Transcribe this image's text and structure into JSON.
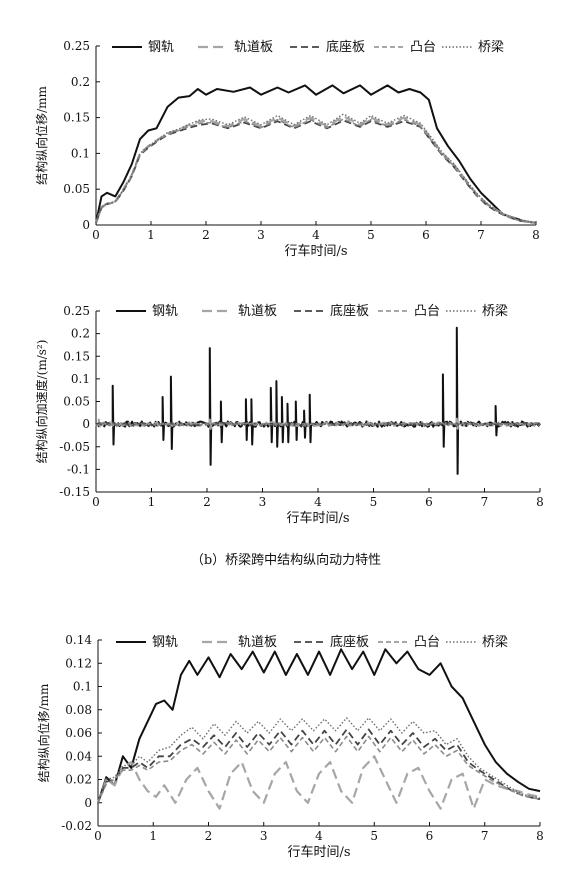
{
  "caption": "（b）桥梁跨中结构纵向动力特性",
  "legend_labels": [
    "钢轨",
    "轨道板",
    "底座板",
    "凸台",
    "桥梁"
  ],
  "colors": {
    "rail": "#111111",
    "slab": "#a6a6a6",
    "base": "#444444",
    "boss": "#8c8c8c",
    "bridge": "#6e6e6e"
  },
  "chart_data": [
    {
      "type": "line",
      "xlabel": "行车时间/s",
      "ylabel": "结构纵向位移/mm",
      "xlim": [
        0,
        8
      ],
      "ylim": [
        0,
        0.25
      ],
      "xticks": [
        "0",
        "1",
        "2",
        "3",
        "4",
        "5",
        "6",
        "7",
        "8"
      ],
      "yticks": [
        "0",
        "0.05",
        "0.1",
        "0.15",
        "0.2",
        "0.25"
      ],
      "legend": "top",
      "grid": false,
      "series": [
        {
          "name": "钢轨",
          "x": [
            0,
            0.1,
            0.2,
            0.35,
            0.5,
            0.65,
            0.8,
            0.95,
            1.1,
            1.3,
            1.5,
            1.7,
            1.85,
            2.0,
            2.2,
            2.5,
            2.8,
            3.0,
            3.3,
            3.5,
            3.8,
            4.0,
            4.3,
            4.5,
            4.8,
            5.0,
            5.3,
            5.5,
            5.7,
            5.9,
            6.05,
            6.2,
            6.4,
            6.6,
            6.8,
            7.0,
            7.2,
            7.4,
            7.6,
            7.8,
            8.0
          ],
          "y": [
            0.003,
            0.04,
            0.045,
            0.04,
            0.06,
            0.085,
            0.12,
            0.132,
            0.135,
            0.165,
            0.178,
            0.18,
            0.19,
            0.182,
            0.19,
            0.186,
            0.192,
            0.182,
            0.192,
            0.185,
            0.195,
            0.182,
            0.195,
            0.184,
            0.195,
            0.182,
            0.195,
            0.185,
            0.19,
            0.185,
            0.175,
            0.135,
            0.11,
            0.09,
            0.065,
            0.045,
            0.03,
            0.015,
            0.01,
            0.005,
            0.003
          ]
        },
        {
          "name": "轨道板",
          "x": [
            0,
            0.1,
            0.2,
            0.35,
            0.5,
            0.65,
            0.8,
            0.95,
            1.1,
            1.3,
            1.5,
            1.7,
            1.9,
            2.1,
            2.4,
            2.7,
            3.0,
            3.3,
            3.6,
            3.9,
            4.2,
            4.5,
            4.8,
            5.0,
            5.3,
            5.6,
            5.9,
            6.1,
            6.3,
            6.5,
            6.7,
            6.9,
            7.1,
            7.3,
            7.5,
            7.7,
            8.0
          ],
          "y": [
            0.003,
            0.025,
            0.03,
            0.033,
            0.05,
            0.07,
            0.1,
            0.11,
            0.118,
            0.128,
            0.133,
            0.14,
            0.145,
            0.145,
            0.138,
            0.148,
            0.138,
            0.15,
            0.138,
            0.15,
            0.138,
            0.152,
            0.14,
            0.15,
            0.14,
            0.15,
            0.14,
            0.12,
            0.1,
            0.085,
            0.065,
            0.045,
            0.03,
            0.02,
            0.012,
            0.007,
            0.003
          ]
        },
        {
          "name": "底座板",
          "x": [
            0,
            0.1,
            0.2,
            0.35,
            0.5,
            0.65,
            0.8,
            0.95,
            1.1,
            1.3,
            1.5,
            1.7,
            1.9,
            2.1,
            2.4,
            2.7,
            3.0,
            3.3,
            3.6,
            3.9,
            4.2,
            4.5,
            4.8,
            5.0,
            5.3,
            5.6,
            5.9,
            6.1,
            6.3,
            6.5,
            6.7,
            6.9,
            7.1,
            7.3,
            7.5,
            7.7,
            8.0
          ],
          "y": [
            0.003,
            0.024,
            0.029,
            0.032,
            0.048,
            0.068,
            0.098,
            0.108,
            0.116,
            0.126,
            0.131,
            0.136,
            0.14,
            0.142,
            0.135,
            0.143,
            0.135,
            0.145,
            0.135,
            0.145,
            0.135,
            0.146,
            0.137,
            0.145,
            0.137,
            0.145,
            0.137,
            0.117,
            0.097,
            0.082,
            0.062,
            0.043,
            0.028,
            0.018,
            0.011,
            0.006,
            0.003
          ]
        },
        {
          "name": "凸台",
          "x": [
            0,
            0.1,
            0.2,
            0.35,
            0.5,
            0.65,
            0.8,
            0.95,
            1.1,
            1.3,
            1.5,
            1.7,
            1.9,
            2.1,
            2.4,
            2.7,
            3.0,
            3.3,
            3.6,
            3.9,
            4.2,
            4.5,
            4.8,
            5.0,
            5.3,
            5.6,
            5.9,
            6.1,
            6.3,
            6.5,
            6.7,
            6.9,
            7.1,
            7.3,
            7.5,
            7.7,
            8.0
          ],
          "y": [
            0.003,
            0.024,
            0.029,
            0.032,
            0.049,
            0.069,
            0.099,
            0.109,
            0.117,
            0.127,
            0.132,
            0.138,
            0.142,
            0.143,
            0.136,
            0.145,
            0.136,
            0.147,
            0.136,
            0.147,
            0.136,
            0.148,
            0.138,
            0.147,
            0.138,
            0.147,
            0.138,
            0.118,
            0.098,
            0.083,
            0.063,
            0.044,
            0.029,
            0.019,
            0.011,
            0.006,
            0.003
          ]
        },
        {
          "name": "桥梁",
          "x": [
            0,
            0.1,
            0.2,
            0.35,
            0.5,
            0.65,
            0.8,
            0.95,
            1.1,
            1.3,
            1.5,
            1.7,
            1.9,
            2.1,
            2.4,
            2.7,
            3.0,
            3.3,
            3.6,
            3.9,
            4.2,
            4.5,
            4.8,
            5.0,
            5.3,
            5.6,
            5.9,
            6.1,
            6.3,
            6.5,
            6.7,
            6.9,
            7.1,
            7.3,
            7.5,
            7.7,
            8.0
          ],
          "y": [
            0.003,
            0.025,
            0.03,
            0.033,
            0.05,
            0.07,
            0.1,
            0.11,
            0.118,
            0.129,
            0.134,
            0.141,
            0.147,
            0.148,
            0.14,
            0.151,
            0.14,
            0.153,
            0.14,
            0.153,
            0.14,
            0.155,
            0.142,
            0.153,
            0.142,
            0.153,
            0.142,
            0.122,
            0.101,
            0.086,
            0.066,
            0.046,
            0.031,
            0.02,
            0.012,
            0.007,
            0.003
          ]
        }
      ]
    },
    {
      "type": "line",
      "xlabel": "行车时间/s",
      "ylabel": "结构纵向加速度/(m/s²)",
      "xlim": [
        0,
        8
      ],
      "ylim": [
        -0.15,
        0.25
      ],
      "xticks": [
        "0",
        "1",
        "2",
        "3",
        "4",
        "5",
        "6",
        "7",
        "8"
      ],
      "yticks": [
        "-0.15",
        "-0.1",
        "-0.05",
        "0",
        "0.05",
        "0.1",
        "0.15",
        "0.2",
        "0.25"
      ],
      "legend": "top",
      "grid": false,
      "series": [
        {
          "name": "钢轨",
          "spikes": [
            [
              0.3,
              0.085,
              -0.045
            ],
            [
              1.2,
              0.06,
              -0.035
            ],
            [
              1.35,
              0.105,
              -0.055
            ],
            [
              2.05,
              0.168,
              -0.09
            ],
            [
              2.25,
              0.05,
              -0.04
            ],
            [
              2.7,
              0.055,
              -0.035
            ],
            [
              2.8,
              0.055,
              -0.045
            ],
            [
              3.15,
              0.08,
              -0.04
            ],
            [
              3.25,
              0.095,
              -0.05
            ],
            [
              3.35,
              0.06,
              -0.04
            ],
            [
              3.45,
              0.045,
              -0.04
            ],
            [
              3.6,
              0.05,
              -0.035
            ],
            [
              3.75,
              0.03,
              -0.03
            ],
            [
              3.85,
              0.065,
              -0.04
            ],
            [
              6.25,
              0.11,
              -0.05
            ],
            [
              6.5,
              0.213,
              -0.11
            ],
            [
              7.2,
              0.04,
              -0.025
            ]
          ],
          "noise": 0.006
        },
        {
          "name": "轨道板",
          "spikes": [
            [
              0.05,
              0.01,
              -0.005
            ],
            [
              2.05,
              0.01,
              -0.01
            ],
            [
              6.5,
              0.012,
              -0.01
            ]
          ],
          "noise": 0.004
        },
        {
          "name": "底座板",
          "spikes": [],
          "noise": 0.003
        },
        {
          "name": "凸台",
          "spikes": [],
          "noise": 0.003
        },
        {
          "name": "桥梁",
          "spikes": [],
          "noise": 0.002
        }
      ]
    },
    {
      "type": "line",
      "xlabel": "行车时间/s",
      "ylabel": "结构纵向位移/mm",
      "xlim": [
        0,
        8
      ],
      "ylim": [
        -0.02,
        0.14
      ],
      "xticks": [
        "0",
        "1",
        "2",
        "3",
        "4",
        "5",
        "6",
        "7",
        "8"
      ],
      "yticks": [
        "-0.02",
        "0",
        "0.02",
        "0.04",
        "0.06",
        "0.08",
        "0.1",
        "0.12",
        "0.14"
      ],
      "legend": "top",
      "grid": false,
      "series": [
        {
          "name": "钢轨",
          "x": [
            0,
            0.15,
            0.3,
            0.45,
            0.6,
            0.75,
            0.9,
            1.05,
            1.2,
            1.35,
            1.5,
            1.65,
            1.8,
            2.0,
            2.2,
            2.4,
            2.6,
            2.8,
            3.0,
            3.2,
            3.4,
            3.6,
            3.8,
            4.0,
            4.2,
            4.4,
            4.6,
            4.8,
            5.0,
            5.2,
            5.4,
            5.6,
            5.8,
            6.0,
            6.2,
            6.4,
            6.6,
            6.8,
            7.0,
            7.2,
            7.4,
            7.6,
            7.8,
            8.0
          ],
          "y": [
            0.0,
            0.022,
            0.015,
            0.04,
            0.03,
            0.055,
            0.07,
            0.085,
            0.088,
            0.08,
            0.11,
            0.122,
            0.11,
            0.125,
            0.108,
            0.128,
            0.115,
            0.13,
            0.112,
            0.13,
            0.11,
            0.128,
            0.11,
            0.13,
            0.11,
            0.132,
            0.115,
            0.13,
            0.11,
            0.132,
            0.12,
            0.13,
            0.115,
            0.11,
            0.12,
            0.1,
            0.09,
            0.07,
            0.05,
            0.035,
            0.025,
            0.018,
            0.012,
            0.01
          ]
        },
        {
          "name": "轨道板",
          "x": [
            0,
            0.15,
            0.3,
            0.45,
            0.6,
            0.75,
            0.9,
            1.05,
            1.2,
            1.4,
            1.6,
            1.8,
            2.0,
            2.2,
            2.4,
            2.6,
            2.8,
            3.0,
            3.2,
            3.4,
            3.6,
            3.8,
            4.0,
            4.2,
            4.4,
            4.6,
            4.8,
            5.0,
            5.2,
            5.4,
            5.6,
            5.8,
            6.0,
            6.2,
            6.4,
            6.6,
            6.8,
            7.0,
            7.2,
            7.4,
            7.6,
            7.8,
            8.0
          ],
          "y": [
            0.0,
            0.02,
            0.015,
            0.03,
            0.035,
            0.02,
            0.01,
            0.005,
            0.015,
            0.0,
            0.02,
            0.03,
            0.01,
            -0.005,
            0.025,
            0.035,
            0.01,
            0.0,
            0.025,
            0.035,
            0.01,
            0.0,
            0.025,
            0.035,
            0.01,
            0.0,
            0.03,
            0.04,
            0.02,
            0.0,
            0.025,
            0.03,
            0.01,
            -0.005,
            0.02,
            0.025,
            -0.005,
            0.02,
            0.015,
            0.012,
            0.01,
            0.007,
            0.005
          ]
        },
        {
          "name": "底座板",
          "x": [
            0,
            0.15,
            0.3,
            0.45,
            0.6,
            0.75,
            0.9,
            1.1,
            1.3,
            1.5,
            1.7,
            1.9,
            2.1,
            2.3,
            2.5,
            2.7,
            2.9,
            3.1,
            3.3,
            3.5,
            3.7,
            3.9,
            4.1,
            4.3,
            4.5,
            4.7,
            4.9,
            5.1,
            5.3,
            5.5,
            5.7,
            5.9,
            6.1,
            6.3,
            6.5,
            6.7,
            6.9,
            7.1,
            7.3,
            7.5,
            7.7,
            8.0
          ],
          "y": [
            0.0,
            0.018,
            0.02,
            0.03,
            0.03,
            0.035,
            0.03,
            0.04,
            0.04,
            0.05,
            0.055,
            0.048,
            0.058,
            0.048,
            0.06,
            0.048,
            0.06,
            0.05,
            0.062,
            0.05,
            0.062,
            0.05,
            0.062,
            0.05,
            0.063,
            0.05,
            0.063,
            0.05,
            0.062,
            0.05,
            0.06,
            0.048,
            0.055,
            0.045,
            0.05,
            0.035,
            0.028,
            0.022,
            0.016,
            0.01,
            0.006,
            0.003
          ]
        },
        {
          "name": "凸台",
          "x": [
            0,
            0.15,
            0.3,
            0.45,
            0.6,
            0.75,
            0.9,
            1.1,
            1.3,
            1.5,
            1.7,
            1.9,
            2.1,
            2.3,
            2.5,
            2.7,
            2.9,
            3.1,
            3.3,
            3.5,
            3.7,
            3.9,
            4.1,
            4.3,
            4.5,
            4.7,
            4.9,
            5.1,
            5.3,
            5.5,
            5.7,
            5.9,
            6.1,
            6.3,
            6.5,
            6.7,
            6.9,
            7.1,
            7.3,
            7.5,
            7.7,
            8.0
          ],
          "y": [
            0.0,
            0.016,
            0.02,
            0.028,
            0.028,
            0.032,
            0.028,
            0.035,
            0.036,
            0.045,
            0.05,
            0.042,
            0.052,
            0.042,
            0.054,
            0.042,
            0.054,
            0.044,
            0.056,
            0.044,
            0.056,
            0.044,
            0.056,
            0.044,
            0.057,
            0.044,
            0.057,
            0.044,
            0.056,
            0.044,
            0.054,
            0.042,
            0.05,
            0.04,
            0.045,
            0.032,
            0.026,
            0.02,
            0.015,
            0.01,
            0.006,
            0.003
          ]
        },
        {
          "name": "桥梁",
          "x": [
            0,
            0.15,
            0.3,
            0.45,
            0.6,
            0.75,
            0.9,
            1.1,
            1.3,
            1.5,
            1.7,
            1.9,
            2.1,
            2.3,
            2.5,
            2.7,
            2.9,
            3.1,
            3.3,
            3.5,
            3.7,
            3.9,
            4.1,
            4.3,
            4.5,
            4.7,
            4.9,
            5.1,
            5.3,
            5.5,
            5.7,
            5.9,
            6.1,
            6.3,
            6.5,
            6.7,
            6.9,
            7.1,
            7.3,
            7.5,
            7.7,
            8.0
          ],
          "y": [
            0.0,
            0.02,
            0.022,
            0.032,
            0.032,
            0.04,
            0.035,
            0.045,
            0.048,
            0.058,
            0.065,
            0.055,
            0.068,
            0.058,
            0.07,
            0.06,
            0.07,
            0.06,
            0.072,
            0.062,
            0.072,
            0.062,
            0.072,
            0.062,
            0.073,
            0.062,
            0.073,
            0.062,
            0.072,
            0.06,
            0.07,
            0.06,
            0.062,
            0.05,
            0.055,
            0.04,
            0.03,
            0.024,
            0.018,
            0.012,
            0.007,
            0.004
          ]
        }
      ]
    }
  ]
}
